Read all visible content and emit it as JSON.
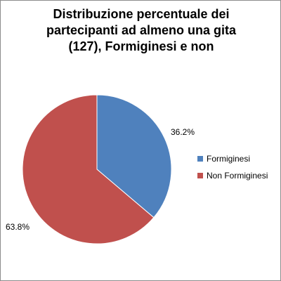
{
  "chart_data": {
    "type": "pie",
    "title_lines": [
      "Distribuzione percentuale dei",
      "partecipanti ad almeno una gita",
      "(127), Formiginesi e non"
    ],
    "categories": [
      "Formiginesi",
      "Non Formiginesi"
    ],
    "values": [
      36.2,
      63.8
    ],
    "data_labels": [
      "36.2%",
      "63.8%"
    ],
    "colors": [
      "#4f81bd",
      "#c0504d"
    ],
    "legend_position": "right"
  }
}
